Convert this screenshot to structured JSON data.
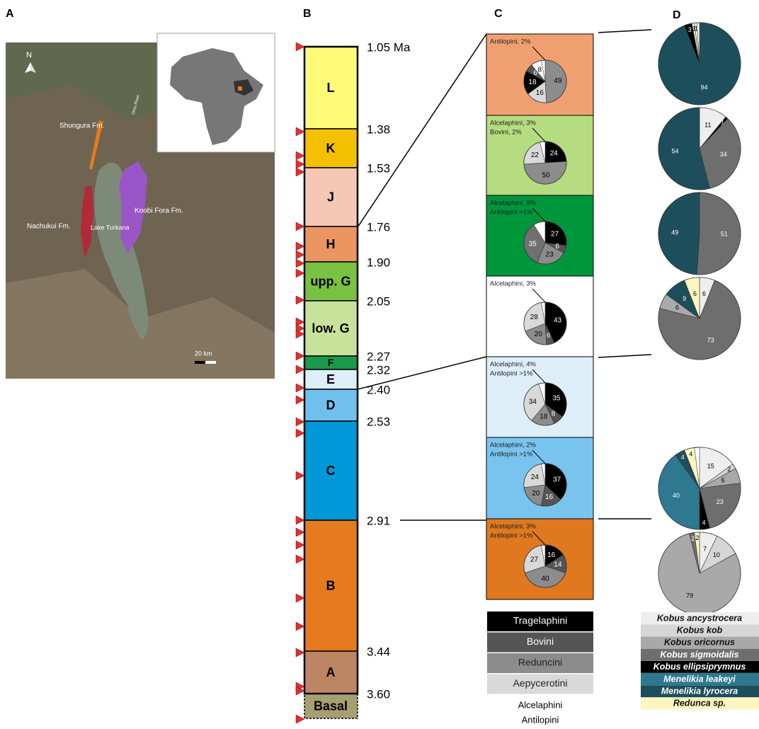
{
  "figure": {
    "panel_a": {
      "label": "A",
      "north": "N",
      "shungura": "Shungura Fm.",
      "koobi_fora": "Koobi Fora Fm.",
      "nachukui": "Nachukui Fm.",
      "lake": "Lake Turkana",
      "river": "Omo River",
      "scale": "20 km"
    },
    "panel_b": {
      "label": "B",
      "units": [
        {
          "name": "L",
          "color": "#fff978"
        },
        {
          "name": "K",
          "color": "#f5c000"
        },
        {
          "name": "J",
          "color": "#f4c8b4"
        },
        {
          "name": "H",
          "color": "#eb9660"
        },
        {
          "name": "upp. G",
          "color": "#7ac142"
        },
        {
          "name": "low. G",
          "color": "#c7e29a"
        },
        {
          "name": "F",
          "color": "#1a9a4a"
        },
        {
          "name": "E",
          "color": "#dceef8"
        },
        {
          "name": "D",
          "color": "#70c0ee"
        },
        {
          "name": "C",
          "color": "#0098d8"
        },
        {
          "name": "B",
          "color": "#e57b1e"
        },
        {
          "name": "A",
          "color": "#bc8563"
        },
        {
          "name": "Basal",
          "color": "#a89e73"
        }
      ],
      "ages": [
        "1.05 Ma",
        "1.38",
        "1.53",
        "1.76",
        "1.90",
        "2.05",
        "2.27",
        "2.32",
        "2.40",
        "2.53",
        "2.91",
        "3.44",
        "3.60"
      ]
    },
    "panel_c": {
      "label": "C",
      "pies": [
        {
          "background": "#f0a070",
          "notes": [
            "Antilopini, 2%"
          ],
          "slices": [
            {
              "value": 49,
              "color": "#8c8c8c"
            },
            {
              "value": 16,
              "color": "#d9d9d9"
            },
            {
              "value": 18,
              "color": "#000000"
            },
            {
              "value": 6,
              "color": "#555555"
            },
            {
              "value": 8,
              "color": "#ffffff"
            }
          ]
        },
        {
          "background": "#b5dc80",
          "notes": [
            "Alcelaphini, 3%",
            "Bovini, 2%"
          ],
          "slices": [
            {
              "value": 24,
              "color": "#000000"
            },
            {
              "value": 50,
              "color": "#8c8c8c"
            },
            {
              "value": 22,
              "color": "#d9d9d9"
            }
          ]
        },
        {
          "background": "#00963c",
          "notes": [
            "Alcelaphini, 9%",
            "Antilopini >1%"
          ],
          "slices": [
            {
              "value": 27,
              "color": "#000000"
            },
            {
              "value": 6,
              "color": "#555555"
            },
            {
              "value": 23,
              "color": "#8c8c8c"
            },
            {
              "value": 35,
              "color": "#707070"
            }
          ]
        },
        {
          "background": "#ffffff",
          "notes": [
            "Alcelaphini, 3%"
          ],
          "slices": [
            {
              "value": 43,
              "color": "#000000"
            },
            {
              "value": 6,
              "color": "#555555"
            },
            {
              "value": 20,
              "color": "#8c8c8c"
            },
            {
              "value": 28,
              "color": "#d9d9d9"
            }
          ]
        },
        {
          "background": "#ddeef8",
          "notes": [
            "Alcelaphini, 4%",
            "Antilopini >1%"
          ],
          "slices": [
            {
              "value": 35,
              "color": "#000000"
            },
            {
              "value": 8,
              "color": "#555555"
            },
            {
              "value": 18,
              "color": "#8c8c8c"
            },
            {
              "value": 34,
              "color": "#d9d9d9"
            }
          ]
        },
        {
          "background": "#78c4ee",
          "notes": [
            "Alcelaphini, 2%",
            "Antilopini >1%"
          ],
          "slices": [
            {
              "value": 37,
              "color": "#000000"
            },
            {
              "value": 16,
              "color": "#555555"
            },
            {
              "value": 20,
              "color": "#8c8c8c"
            },
            {
              "value": 24,
              "color": "#d9d9d9"
            }
          ]
        },
        {
          "background": "#e07820",
          "notes": [
            "Alcelaphini, 3%",
            "Antilopini >1%"
          ],
          "slices": [
            {
              "value": 16,
              "color": "#000000"
            },
            {
              "value": 14,
              "color": "#555555"
            },
            {
              "value": 40,
              "color": "#8c8c8c"
            },
            {
              "value": 27,
              "color": "#d9d9d9"
            }
          ]
        }
      ],
      "legend": [
        {
          "name": "Tragelaphini",
          "color": "#000000"
        },
        {
          "name": "Bovini",
          "color": "#555555"
        },
        {
          "name": "Reduncini",
          "color": "#8c8c8c"
        },
        {
          "name": "Aepycerotini",
          "color": "#d9d9d9"
        },
        {
          "name": "Alcelaphini"
        },
        {
          "name": "Antilopini"
        }
      ]
    },
    "panel_d": {
      "label": "D",
      "species": [
        {
          "name": "Kobus ancystrocera",
          "color": "#eeeeee"
        },
        {
          "name": "Kobus kob",
          "color": "#d6d6d6"
        },
        {
          "name": "Kobus oricornus",
          "color": "#a9a9a9"
        },
        {
          "name": "Kobus sigmoidalis",
          "color": "#6e6e6e"
        },
        {
          "name": "Kobus ellipsiprymnus",
          "color": "#000000"
        },
        {
          "name": "Menelikia leakeyi",
          "color": "#2e7890"
        },
        {
          "name": "Menelikia lyrocera",
          "color": "#1c4e5c"
        },
        {
          "name": "Redunca sp.",
          "color": "#fdf6bf"
        }
      ],
      "pies": [
        {
          "slices": [
            {
              "species": 6,
              "value": 94
            },
            {
              "species": 4,
              "value": 3
            },
            {
              "species": 0,
              "value": 1
            },
            {
              "species": 7,
              "value": 1
            }
          ]
        },
        {
          "slices": [
            {
              "species": 0,
              "value": 11
            },
            {
              "species": 4,
              "value": 1
            },
            {
              "species": 3,
              "value": 34
            },
            {
              "species": 6,
              "value": 54
            }
          ]
        },
        {
          "slices": [
            {
              "species": 3,
              "value": 51
            },
            {
              "species": 6,
              "value": 49
            }
          ]
        },
        {
          "slices": [
            {
              "species": 0,
              "value": 6
            },
            {
              "species": 3,
              "value": 73
            },
            {
              "species": 2,
              "value": 6
            },
            {
              "species": 6,
              "value": 9
            },
            {
              "species": 7,
              "value": 6
            }
          ]
        },
        {
          "slices": [
            {
              "species": 0,
              "value": 15
            },
            {
              "species": 1,
              "value": 2
            },
            {
              "species": 2,
              "value": 6
            },
            {
              "species": 3,
              "value": 23
            },
            {
              "species": 4,
              "value": 4
            },
            {
              "species": 5,
              "value": 40
            },
            {
              "species": 6,
              "value": 4
            },
            {
              "species": 7,
              "value": 4
            }
          ]
        },
        {
          "slices": [
            {
              "species": 0,
              "value": 7
            },
            {
              "species": 1,
              "value": 10
            },
            {
              "species": 2,
              "value": 79
            },
            {
              "species": 3,
              "value": 2
            },
            {
              "species": 7,
              "value": 2
            }
          ]
        }
      ]
    }
  }
}
